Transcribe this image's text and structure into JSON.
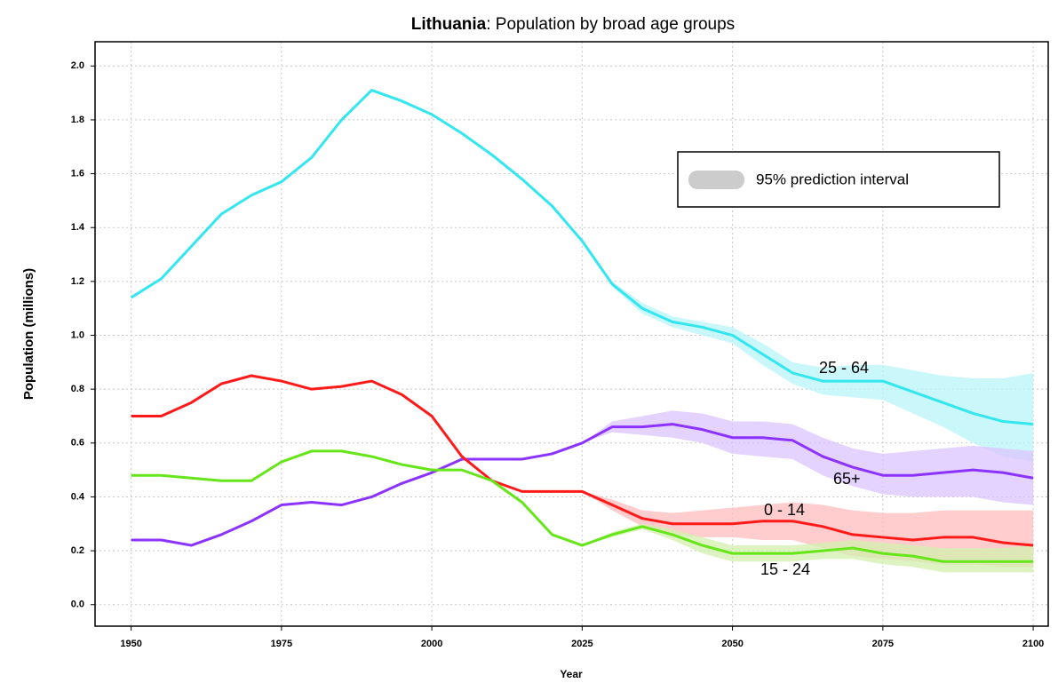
{
  "chart_data": {
    "type": "line",
    "title_bold": "Lithuania",
    "title": ": Population by broad age groups",
    "xlabel": "Year",
    "ylabel": "Population (millions)",
    "interval_label": "95% prediction interval",
    "interval_color": "#cccccc",
    "grid": true,
    "xlim": [
      1944,
      2102.5
    ],
    "ylim": [
      -0.08,
      2.09
    ],
    "xticks": [
      1950,
      1975,
      2000,
      2025,
      2050,
      2075,
      2100
    ],
    "yticks": [
      {
        "value": 0,
        "label": "0.0"
      },
      0.2,
      0.4,
      0.6,
      0.8,
      {
        "value": 1,
        "label": "1.0"
      },
      1.2,
      1.4,
      1.6,
      1.8,
      {
        "value": 2,
        "label": "2.0"
      }
    ],
    "x": [
      1950,
      1955,
      1960,
      1965,
      1970,
      1975,
      1980,
      1985,
      1990,
      1995,
      2000,
      2005,
      2010,
      2015,
      2020,
      2025,
      2030,
      2035,
      2040,
      2045,
      2050,
      2055,
      2060,
      2065,
      2070,
      2075,
      2080,
      2085,
      2090,
      2095,
      2100
    ],
    "series": [
      {
        "name": "25 - 64",
        "color": "#33e6f0",
        "band_color": "#b8f4f8",
        "values": [
          1.14,
          1.21,
          1.33,
          1.45,
          1.52,
          1.57,
          1.66,
          1.8,
          1.91,
          1.87,
          1.82,
          1.75,
          1.67,
          1.58,
          1.48,
          1.35,
          1.19,
          1.1,
          1.05,
          1.03,
          1.0,
          0.93,
          0.86,
          0.83,
          0.83,
          0.83,
          0.79,
          0.75,
          0.71,
          0.68,
          0.67
        ],
        "upper": [
          null,
          null,
          null,
          null,
          null,
          null,
          null,
          null,
          null,
          null,
          null,
          null,
          null,
          null,
          null,
          1.35,
          1.2,
          1.12,
          1.07,
          1.05,
          1.03,
          0.97,
          0.9,
          0.88,
          0.89,
          0.89,
          0.87,
          0.85,
          0.84,
          0.84,
          0.86
        ],
        "lower": [
          null,
          null,
          null,
          null,
          null,
          null,
          null,
          null,
          null,
          null,
          null,
          null,
          null,
          null,
          null,
          1.35,
          1.18,
          1.08,
          1.03,
          1.0,
          0.97,
          0.89,
          0.82,
          0.78,
          0.77,
          0.76,
          0.71,
          0.66,
          0.6,
          0.55,
          0.53
        ]
      },
      {
        "name": "65+",
        "color": "#8c33ff",
        "band_color": "#dcc4ff",
        "values": [
          0.24,
          0.24,
          0.22,
          0.26,
          0.31,
          0.37,
          0.38,
          0.37,
          0.4,
          0.45,
          0.49,
          0.54,
          0.54,
          0.54,
          0.56,
          0.6,
          0.66,
          0.66,
          0.67,
          0.65,
          0.62,
          0.62,
          0.61,
          0.55,
          0.51,
          0.48,
          0.48,
          0.49,
          0.5,
          0.49,
          0.47
        ],
        "upper": [
          null,
          null,
          null,
          null,
          null,
          null,
          null,
          null,
          null,
          null,
          null,
          null,
          null,
          null,
          null,
          0.6,
          0.68,
          0.7,
          0.72,
          0.71,
          0.68,
          0.68,
          0.67,
          0.62,
          0.58,
          0.56,
          0.57,
          0.58,
          0.59,
          0.58,
          0.57
        ],
        "lower": [
          null,
          null,
          null,
          null,
          null,
          null,
          null,
          null,
          null,
          null,
          null,
          null,
          null,
          null,
          null,
          0.6,
          0.64,
          0.63,
          0.62,
          0.6,
          0.56,
          0.55,
          0.54,
          0.48,
          0.44,
          0.41,
          0.4,
          0.4,
          0.4,
          0.38,
          0.37
        ]
      },
      {
        "name": "0 - 14",
        "color": "#ff1a1a",
        "band_color": "#ffbcbc",
        "values": [
          0.7,
          0.7,
          0.75,
          0.82,
          0.85,
          0.83,
          0.8,
          0.81,
          0.83,
          0.78,
          0.7,
          0.55,
          0.46,
          0.42,
          0.42,
          0.42,
          0.37,
          0.32,
          0.3,
          0.3,
          0.3,
          0.31,
          0.31,
          0.29,
          0.26,
          0.25,
          0.24,
          0.25,
          0.25,
          0.23,
          0.22
        ],
        "upper": [
          null,
          null,
          null,
          null,
          null,
          null,
          null,
          null,
          null,
          null,
          null,
          null,
          null,
          null,
          null,
          0.42,
          0.39,
          0.35,
          0.34,
          0.35,
          0.36,
          0.37,
          0.38,
          0.37,
          0.35,
          0.34,
          0.34,
          0.35,
          0.35,
          0.35,
          0.35
        ],
        "lower": [
          null,
          null,
          null,
          null,
          null,
          null,
          null,
          null,
          null,
          null,
          null,
          null,
          null,
          null,
          null,
          0.42,
          0.35,
          0.29,
          0.26,
          0.25,
          0.25,
          0.24,
          0.24,
          0.21,
          0.18,
          0.17,
          0.16,
          0.15,
          0.15,
          0.14,
          0.14
        ]
      },
      {
        "name": "15 - 24",
        "color": "#66e61a",
        "band_color": "#d2f0ae",
        "values": [
          0.48,
          0.48,
          0.47,
          0.46,
          0.46,
          0.53,
          0.57,
          0.57,
          0.55,
          0.52,
          0.5,
          0.5,
          0.46,
          0.38,
          0.26,
          0.22,
          0.26,
          0.29,
          0.26,
          0.22,
          0.19,
          0.19,
          0.19,
          0.2,
          0.21,
          0.19,
          0.18,
          0.16,
          0.16,
          0.16,
          0.16
        ],
        "upper": [
          null,
          null,
          null,
          null,
          null,
          null,
          null,
          null,
          null,
          null,
          null,
          null,
          null,
          null,
          null,
          0.22,
          0.27,
          0.3,
          0.28,
          0.25,
          0.22,
          0.22,
          0.22,
          0.23,
          0.24,
          0.23,
          0.22,
          0.21,
          0.21,
          0.21,
          0.22
        ],
        "lower": [
          null,
          null,
          null,
          null,
          null,
          null,
          null,
          null,
          null,
          null,
          null,
          null,
          null,
          null,
          null,
          0.22,
          0.25,
          0.28,
          0.24,
          0.19,
          0.16,
          0.16,
          0.16,
          0.17,
          0.17,
          0.15,
          0.14,
          0.12,
          0.12,
          0.12,
          0.12
        ]
      }
    ]
  }
}
